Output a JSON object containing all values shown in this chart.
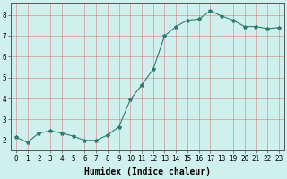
{
  "x": [
    0,
    1,
    2,
    3,
    4,
    5,
    6,
    7,
    8,
    9,
    10,
    11,
    12,
    13,
    14,
    15,
    16,
    17,
    18,
    19,
    20,
    21,
    22,
    23
  ],
  "y": [
    2.15,
    1.9,
    2.35,
    2.45,
    2.35,
    2.2,
    2.0,
    2.0,
    2.25,
    2.65,
    3.95,
    4.65,
    5.4,
    7.0,
    7.45,
    7.75,
    7.8,
    8.2,
    7.95,
    7.75,
    7.45,
    7.45,
    7.35,
    7.4
  ],
  "line_color": "#2e7d6e",
  "marker": "*",
  "marker_size": 3,
  "bg_color": "#cff0ec",
  "grid_color": "#d08080",
  "xlabel": "Humidex (Indice chaleur)",
  "xlim": [
    -0.5,
    23.5
  ],
  "ylim": [
    1.5,
    8.6
  ],
  "yticks": [
    2,
    3,
    4,
    5,
    6,
    7,
    8
  ],
  "xticks": [
    0,
    1,
    2,
    3,
    4,
    5,
    6,
    7,
    8,
    9,
    10,
    11,
    12,
    13,
    14,
    15,
    16,
    17,
    18,
    19,
    20,
    21,
    22,
    23
  ],
  "tick_fontsize": 5.5,
  "xlabel_fontsize": 7,
  "line_width": 0.8
}
